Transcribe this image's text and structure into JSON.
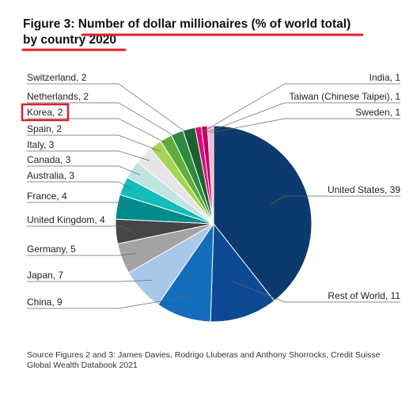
{
  "title": {
    "prefix": "Figure 3: ",
    "line1": "Number of dollar millionaires (% of world total)",
    "line2": "by country 2020"
  },
  "colors": {
    "highlight": "#e0202b",
    "annotation": "#e0202b"
  },
  "chart_data": {
    "type": "pie",
    "title": "Number of dollar millionaires (% of world total) by country 2020",
    "slices": [
      {
        "label": "United States",
        "value": 39,
        "color": "#0c3a6e"
      },
      {
        "label": "Rest of World",
        "value": 11,
        "color": "#0e4a93"
      },
      {
        "label": "China",
        "value": 9,
        "color": "#136dba"
      },
      {
        "label": "Japan",
        "value": 7,
        "color": "#a9c8e9"
      },
      {
        "label": "Germany",
        "value": 5,
        "color": "#a3a3a3"
      },
      {
        "label": "United Kingdom",
        "value": 4,
        "color": "#454545"
      },
      {
        "label": "France",
        "value": 4,
        "color": "#008b8d"
      },
      {
        "label": "Australia",
        "value": 3,
        "color": "#15bdb7"
      },
      {
        "label": "Canada",
        "value": 3,
        "color": "#bfe5e3"
      },
      {
        "label": "Italy",
        "value": 3,
        "color": "#e6e6e6"
      },
      {
        "label": "Spain",
        "value": 2,
        "color": "#a6d455"
      },
      {
        "label": "Korea",
        "value": 2,
        "color": "#5fae3c"
      },
      {
        "label": "Netherlands",
        "value": 2,
        "color": "#2e8a42"
      },
      {
        "label": "Switzerland",
        "value": 2,
        "color": "#1e5f33"
      },
      {
        "label": "India",
        "value": 1,
        "color": "#e3007a"
      },
      {
        "label": "Taiwan (Chinese Taipei)",
        "value": 1,
        "color": "#c10064"
      },
      {
        "label": "Sweden",
        "value": 1,
        "color": "#f7b5cf"
      }
    ],
    "highlighted_label": "Korea"
  },
  "source": "Source Figures 2 and 3: James Davies, Rodrigo Lluberas and Anthony Shorrocks, Credit Suisse Global Wealth Databook 2021"
}
